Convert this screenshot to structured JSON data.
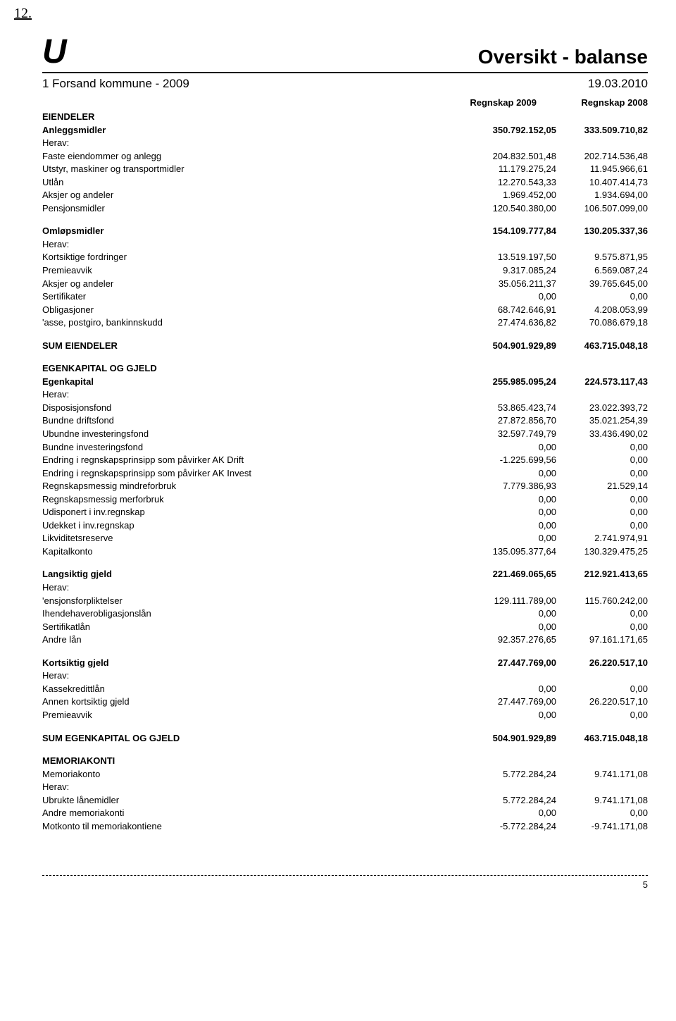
{
  "corner_note": "12.",
  "logo_text": "U",
  "doc_title": "Oversikt - balanse",
  "subtitle_left": "1 Forsand kommune - 2009",
  "subtitle_right": "19.03.2010",
  "col1": "Regnskap 2009",
  "col2": "Regnskap 2008",
  "page_number": "5",
  "sections": [
    {
      "type": "heading",
      "label": "EIENDELER"
    },
    {
      "type": "row",
      "bold": true,
      "label": "Anleggsmidler",
      "v1": "350.792.152,05",
      "v2": "333.509.710,82"
    },
    {
      "type": "herav"
    },
    {
      "type": "row",
      "label": "Faste eiendommer og anlegg",
      "v1": "204.832.501,48",
      "v2": "202.714.536,48"
    },
    {
      "type": "row",
      "label": "Utstyr, maskiner og transportmidler",
      "v1": "11.179.275,24",
      "v2": "11.945.966,61"
    },
    {
      "type": "row",
      "label": "Utlån",
      "v1": "12.270.543,33",
      "v2": "10.407.414,73"
    },
    {
      "type": "row",
      "label": "Aksjer og andeler",
      "v1": "1.969.452,00",
      "v2": "1.934.694,00"
    },
    {
      "type": "row",
      "label": "Pensjonsmidler",
      "v1": "120.540.380,00",
      "v2": "106.507.099,00"
    },
    {
      "type": "gap"
    },
    {
      "type": "row",
      "bold": true,
      "label": "Omløpsmidler",
      "v1": "154.109.777,84",
      "v2": "130.205.337,36"
    },
    {
      "type": "herav"
    },
    {
      "type": "row",
      "label": "Kortsiktige fordringer",
      "v1": "13.519.197,50",
      "v2": "9.575.871,95"
    },
    {
      "type": "row",
      "label": "Premieavvik",
      "v1": "9.317.085,24",
      "v2": "6.569.087,24"
    },
    {
      "type": "row",
      "label": "Aksjer og andeler",
      "v1": "35.056.211,37",
      "v2": "39.765.645,00"
    },
    {
      "type": "row",
      "label": "Sertifikater",
      "v1": "0,00",
      "v2": "0,00"
    },
    {
      "type": "row",
      "label": "Obligasjoner",
      "v1": "68.742.646,91",
      "v2": "4.208.053,99"
    },
    {
      "type": "row",
      "label": "'asse, postgiro, bankinnskudd",
      "v1": "27.474.636,82",
      "v2": "70.086.679,18"
    },
    {
      "type": "gap"
    },
    {
      "type": "row",
      "bold": true,
      "label": "SUM EIENDELER",
      "v1": "504.901.929,89",
      "v2": "463.715.048,18"
    },
    {
      "type": "gap"
    },
    {
      "type": "heading",
      "label": "EGENKAPITAL OG GJELD"
    },
    {
      "type": "row",
      "bold": true,
      "label": "Egenkapital",
      "v1": "255.985.095,24",
      "v2": "224.573.117,43"
    },
    {
      "type": "herav"
    },
    {
      "type": "row",
      "label": "Disposisjonsfond",
      "v1": "53.865.423,74",
      "v2": "23.022.393,72"
    },
    {
      "type": "row",
      "label": "Bundne driftsfond",
      "v1": "27.872.856,70",
      "v2": "35.021.254,39"
    },
    {
      "type": "row",
      "label": "Ubundne investeringsfond",
      "v1": "32.597.749,79",
      "v2": "33.436.490,02"
    },
    {
      "type": "row",
      "label": "Bundne investeringsfond",
      "v1": "0,00",
      "v2": "0,00"
    },
    {
      "type": "row",
      "label": "Endring i regnskapsprinsipp som påvirker AK Drift",
      "v1": "-1.225.699,56",
      "v2": "0,00"
    },
    {
      "type": "row",
      "label": "Endring i regnskapsprinsipp som påvirker AK Invest",
      "v1": "0,00",
      "v2": "0,00"
    },
    {
      "type": "row",
      "label": "Regnskapsmessig mindreforbruk",
      "v1": "7.779.386,93",
      "v2": "21.529,14"
    },
    {
      "type": "row",
      "label": "Regnskapsmessig merforbruk",
      "v1": "0,00",
      "v2": "0,00"
    },
    {
      "type": "row",
      "label": "Udisponert i inv.regnskap",
      "v1": "0,00",
      "v2": "0,00"
    },
    {
      "type": "row",
      "label": "Udekket i inv.regnskap",
      "v1": "0,00",
      "v2": "0,00"
    },
    {
      "type": "row",
      "label": "Likviditetsreserve",
      "v1": "0,00",
      "v2": "2.741.974,91"
    },
    {
      "type": "row",
      "label": "Kapitalkonto",
      "v1": "135.095.377,64",
      "v2": "130.329.475,25"
    },
    {
      "type": "gap"
    },
    {
      "type": "row",
      "bold": true,
      "label": "Langsiktig gjeld",
      "v1": "221.469.065,65",
      "v2": "212.921.413,65"
    },
    {
      "type": "herav"
    },
    {
      "type": "row",
      "label": "'ensjonsforpliktelser",
      "v1": "129.111.789,00",
      "v2": "115.760.242,00"
    },
    {
      "type": "row",
      "label": "Ihendehaverobligasjonslån",
      "v1": "0,00",
      "v2": "0,00"
    },
    {
      "type": "row",
      "label": "Sertifikatlån",
      "v1": "0,00",
      "v2": "0,00"
    },
    {
      "type": "row",
      "label": "Andre lån",
      "v1": "92.357.276,65",
      "v2": "97.161.171,65"
    },
    {
      "type": "gap"
    },
    {
      "type": "row",
      "bold": true,
      "label": "Kortsiktig gjeld",
      "v1": "27.447.769,00",
      "v2": "26.220.517,10"
    },
    {
      "type": "herav"
    },
    {
      "type": "row",
      "label": "Kassekredittlån",
      "v1": "0,00",
      "v2": "0,00"
    },
    {
      "type": "row",
      "label": "Annen kortsiktig gjeld",
      "v1": "27.447.769,00",
      "v2": "26.220.517,10"
    },
    {
      "type": "row",
      "label": "Premieavvik",
      "v1": "0,00",
      "v2": "0,00"
    },
    {
      "type": "gap"
    },
    {
      "type": "row",
      "bold": true,
      "label": "SUM EGENKAPITAL OG GJELD",
      "v1": "504.901.929,89",
      "v2": "463.715.048,18"
    },
    {
      "type": "gap"
    },
    {
      "type": "heading",
      "label": "MEMORIAKONTI"
    },
    {
      "type": "row",
      "label": "Memoriakonto",
      "v1": "5.772.284,24",
      "v2": "9.741.171,08"
    },
    {
      "type": "herav"
    },
    {
      "type": "row",
      "label": "Ubrukte lånemidler",
      "v1": "5.772.284,24",
      "v2": "9.741.171,08"
    },
    {
      "type": "row",
      "label": "Andre memoriakonti",
      "v1": "0,00",
      "v2": "0,00"
    },
    {
      "type": "row",
      "label": "Motkonto til memoriakontiene",
      "v1": "-5.772.284,24",
      "v2": "-9.741.171,08"
    }
  ]
}
